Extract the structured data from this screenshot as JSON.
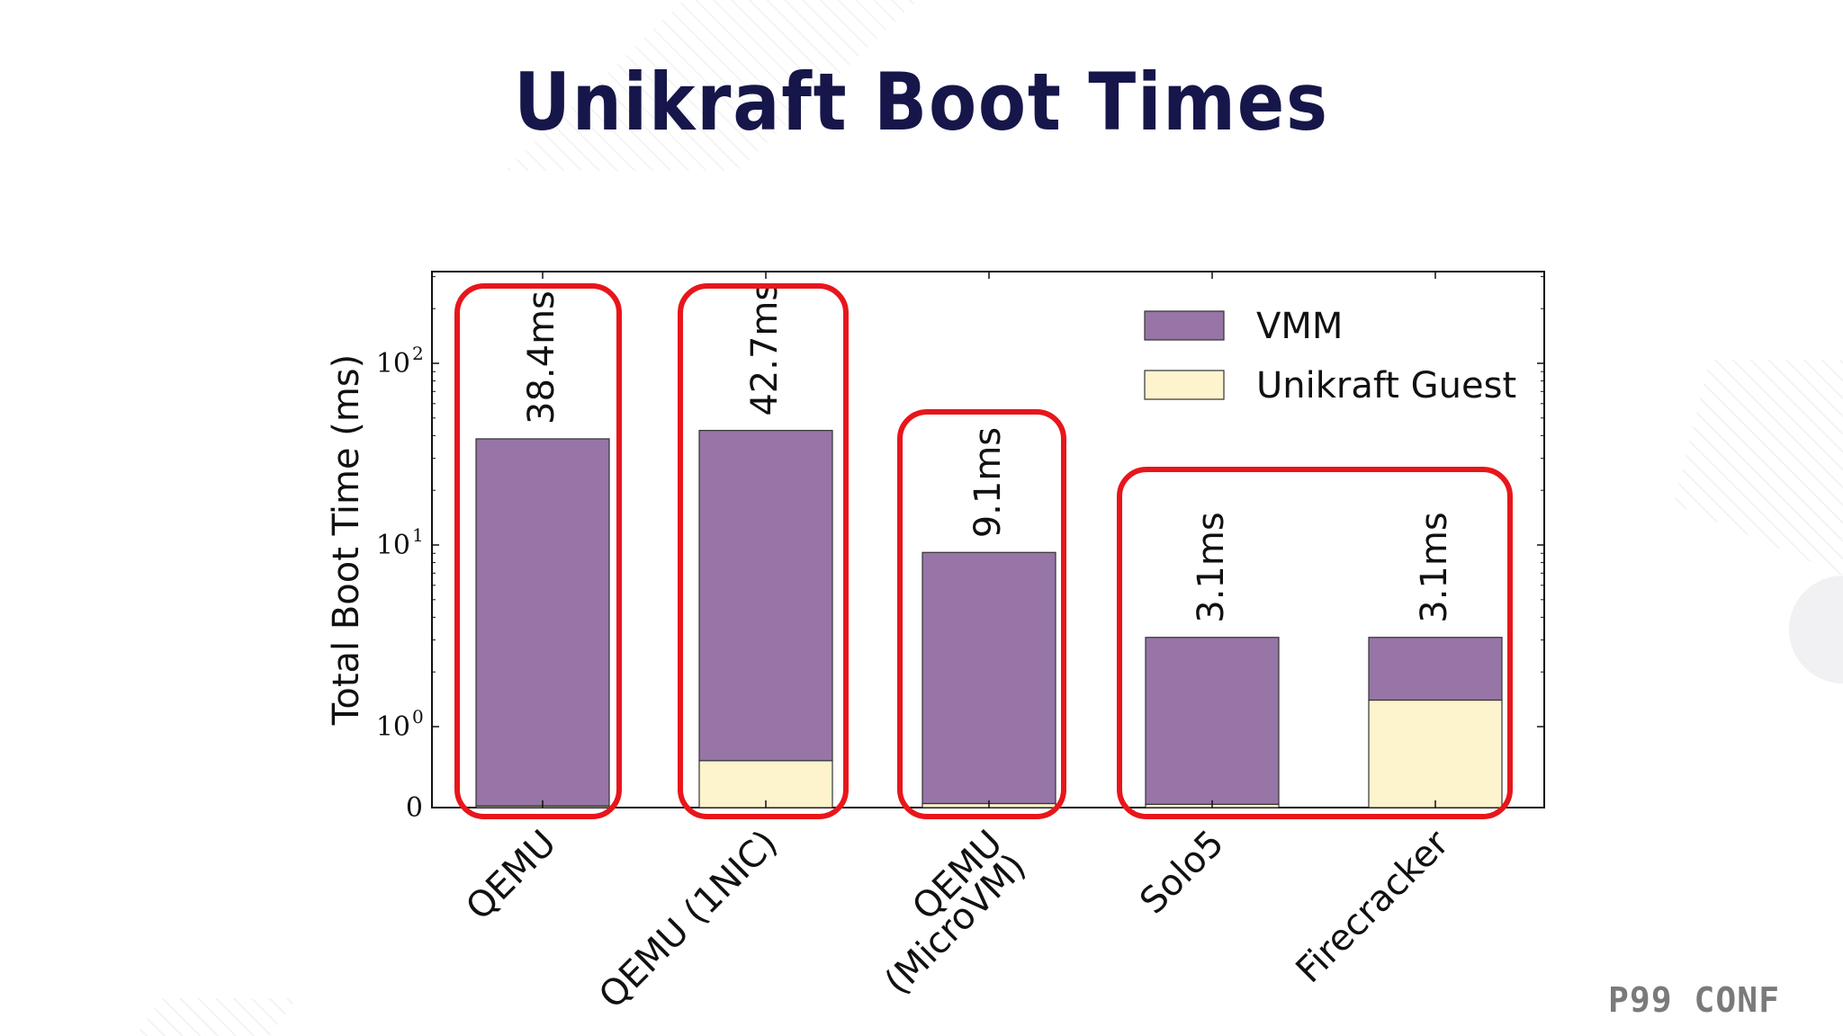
{
  "slide": {
    "title": "Unikraft Boot Times",
    "brand": "P99 CONF"
  },
  "colors": {
    "vmm": "#9775a6",
    "guest": "#fdf3cd",
    "highlight": "#e8161b",
    "title": "#16164a"
  },
  "chart_data": {
    "type": "bar",
    "stacked": true,
    "y_scale": "symlog",
    "ylabel": "Total Boot Time (ms)",
    "y_ticks": [
      {
        "value": 0,
        "label": "0"
      },
      {
        "value": 1,
        "label": "10",
        "exp": "0"
      },
      {
        "value": 10,
        "label": "10",
        "exp": "1"
      },
      {
        "value": 100,
        "label": "10",
        "exp": "2"
      }
    ],
    "ylim": [
      0,
      500
    ],
    "categories": [
      "QEMU",
      "QEMU (1NIC)",
      "QEMU (MicroVM)",
      "Solo5",
      "Firecracker"
    ],
    "category_labels": [
      [
        "QEMU"
      ],
      [
        "QEMU (1NIC)"
      ],
      [
        "QEMU",
        "(MicroVM)"
      ],
      [
        "Solo5"
      ],
      [
        "Firecracker"
      ]
    ],
    "series": [
      {
        "name": "Unikraft Guest",
        "values": [
          0.02,
          0.58,
          0.05,
          0.04,
          1.4
        ]
      },
      {
        "name": "VMM",
        "values": [
          38.38,
          42.12,
          9.05,
          3.06,
          1.7
        ]
      }
    ],
    "totals": [
      38.4,
      42.7,
      9.1,
      3.1,
      3.1
    ],
    "total_labels": [
      "38.4ms",
      "42.7ms",
      "9.1ms",
      "3.1ms",
      "3.1ms"
    ],
    "legend": {
      "position": "top-right",
      "entries": [
        "VMM",
        "Unikraft Guest"
      ]
    },
    "grid": false
  }
}
